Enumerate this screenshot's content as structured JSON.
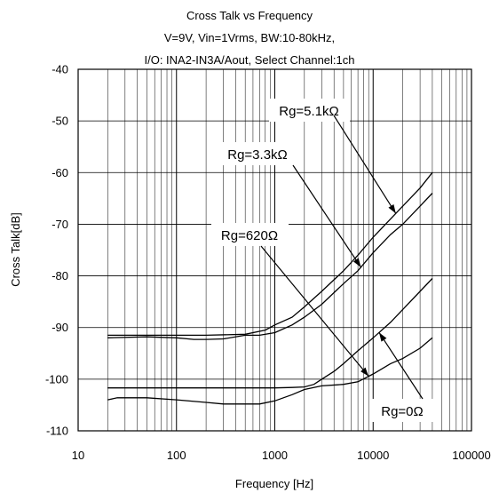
{
  "chart_data": {
    "type": "line",
    "title_lines": [
      "Cross Talk vs Frequency",
      "V=9V, Vin=1Vrms, BW:10-80kHz,",
      "I/O: INA2-IN3A/Aout, Select Channel:1ch"
    ],
    "xlabel": "Frequency [Hz]",
    "ylabel": "Cross Talk[dB]",
    "x_scale": "log",
    "xlim": [
      10,
      100000
    ],
    "ylim": [
      -110,
      -40
    ],
    "x_ticks": [
      "10",
      "100",
      "1000",
      "10000",
      "100000"
    ],
    "y_ticks": [
      "-40",
      "-50",
      "-60",
      "-70",
      "-80",
      "-90",
      "-100",
      "-110"
    ],
    "grid": true,
    "series": [
      {
        "name": "Rg=5.1kΩ",
        "points": [
          [
            20,
            -91.5
          ],
          [
            50,
            -91.5
          ],
          [
            100,
            -91.5
          ],
          [
            200,
            -91.5
          ],
          [
            500,
            -91.3
          ],
          [
            800,
            -90.5
          ],
          [
            1000,
            -89.5
          ],
          [
            1500,
            -88
          ],
          [
            2000,
            -86
          ],
          [
            3000,
            -83
          ],
          [
            5000,
            -79
          ],
          [
            7000,
            -76
          ],
          [
            10000,
            -72.5
          ],
          [
            15000,
            -69
          ],
          [
            20000,
            -66.5
          ],
          [
            30000,
            -63
          ],
          [
            40000,
            -60
          ]
        ]
      },
      {
        "name": "Rg=3.3kΩ",
        "points": [
          [
            20,
            -92
          ],
          [
            50,
            -91.8
          ],
          [
            100,
            -92
          ],
          [
            150,
            -92.3
          ],
          [
            200,
            -92.3
          ],
          [
            300,
            -92.2
          ],
          [
            500,
            -91.5
          ],
          [
            700,
            -91.5
          ],
          [
            1000,
            -91
          ],
          [
            1500,
            -89.5
          ],
          [
            2000,
            -88
          ],
          [
            3000,
            -85.5
          ],
          [
            5000,
            -81.5
          ],
          [
            7000,
            -79
          ],
          [
            10000,
            -75.5
          ],
          [
            15000,
            -72
          ],
          [
            20000,
            -70
          ],
          [
            30000,
            -66.5
          ],
          [
            40000,
            -64
          ]
        ]
      },
      {
        "name": "Rg=620Ω",
        "points": [
          [
            20,
            -101.7
          ],
          [
            50,
            -101.7
          ],
          [
            100,
            -101.7
          ],
          [
            200,
            -101.7
          ],
          [
            500,
            -101.7
          ],
          [
            1000,
            -101.7
          ],
          [
            1500,
            -101.6
          ],
          [
            2000,
            -101.5
          ],
          [
            2500,
            -101
          ],
          [
            3000,
            -100
          ],
          [
            4000,
            -98.5
          ],
          [
            5000,
            -97
          ],
          [
            7000,
            -94.5
          ],
          [
            10000,
            -92
          ],
          [
            15000,
            -89
          ],
          [
            20000,
            -86.5
          ],
          [
            30000,
            -83
          ],
          [
            40000,
            -80.5
          ]
        ]
      },
      {
        "name": "Rg=0Ω",
        "points": [
          [
            20,
            -104
          ],
          [
            25,
            -103.6
          ],
          [
            50,
            -103.6
          ],
          [
            100,
            -104
          ],
          [
            200,
            -104.5
          ],
          [
            300,
            -104.8
          ],
          [
            500,
            -104.8
          ],
          [
            700,
            -104.8
          ],
          [
            1000,
            -104.2
          ],
          [
            1500,
            -103
          ],
          [
            2000,
            -102
          ],
          [
            3000,
            -101.3
          ],
          [
            5000,
            -101
          ],
          [
            7000,
            -100.5
          ],
          [
            10000,
            -99
          ],
          [
            15000,
            -97
          ],
          [
            20000,
            -96
          ],
          [
            30000,
            -94
          ],
          [
            40000,
            -92
          ]
        ]
      }
    ],
    "annotations": [
      {
        "text": "Rg=5.1kΩ",
        "series": 0
      },
      {
        "text": "Rg=3.3kΩ",
        "series": 1
      },
      {
        "text": "Rg=620Ω",
        "series": 2
      },
      {
        "text": "Rg=0Ω",
        "series": 3
      }
    ]
  }
}
